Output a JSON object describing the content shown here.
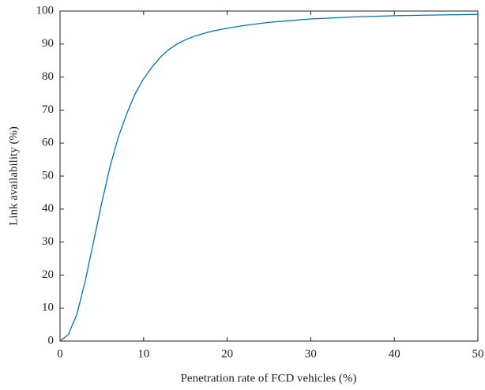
{
  "chart_data": {
    "type": "line",
    "xlabel": "Penetration rate of FCD vehicles (%)",
    "ylabel": "Link availability (%)",
    "x": [
      0,
      1,
      2,
      3,
      4,
      5,
      6,
      7,
      8,
      9,
      10,
      11,
      12,
      13,
      14,
      15,
      16,
      18,
      20,
      22,
      25,
      30,
      35,
      40,
      45,
      50
    ],
    "values": [
      0,
      2,
      8,
      18,
      30,
      42,
      53,
      62,
      69,
      75,
      79.5,
      83,
      86,
      88.3,
      90,
      91.3,
      92.3,
      93.8,
      94.8,
      95.6,
      96.6,
      97.6,
      98.2,
      98.6,
      98.8,
      99
    ],
    "color": "#0072bd",
    "xlim": [
      0,
      50
    ],
    "xticks": [
      0,
      10,
      20,
      30,
      40,
      50
    ],
    "ylim": [
      0,
      100
    ],
    "yticks": [
      0,
      10,
      20,
      30,
      40,
      50,
      60,
      70,
      80,
      90,
      100
    ]
  }
}
